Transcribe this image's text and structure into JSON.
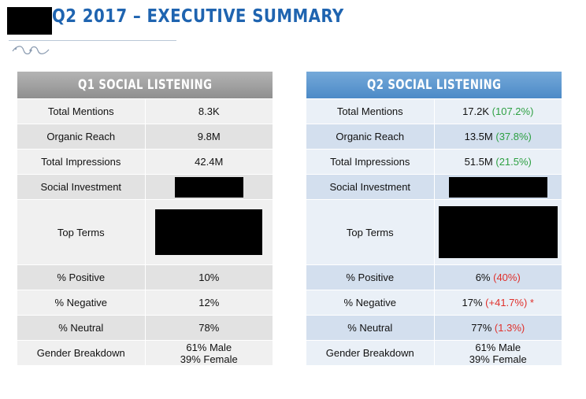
{
  "header": {
    "title": "Q2 2017 – EXECUTIVE SUMMARY"
  },
  "colors": {
    "title": "#1f64b0",
    "q1_header": "#9e9e9e",
    "q2_header": "#5b97d0",
    "positive_change": "#2ea043",
    "negative_change": "#e0302b"
  },
  "q1": {
    "heading": "Q1 SOCIAL LISTENING",
    "rows": [
      {
        "label": "Total Mentions",
        "value": "8.3K"
      },
      {
        "label": "Organic Reach",
        "value": "9.8M"
      },
      {
        "label": "Total Impressions",
        "value": "42.4M"
      },
      {
        "label": "Social Investment",
        "value": ""
      },
      {
        "label": "Top Terms",
        "value": ""
      },
      {
        "label": "% Positive",
        "value": "10%"
      },
      {
        "label": "% Negative",
        "value": "12%"
      },
      {
        "label": "% Neutral",
        "value": "78%"
      },
      {
        "label": "Gender Breakdown",
        "value_line1": "61% Male",
        "value_line2": "39% Female"
      }
    ]
  },
  "q2": {
    "heading": "Q2 SOCIAL LISTENING",
    "rows": [
      {
        "label": "Total Mentions",
        "value": "17.2K",
        "change": "(107.2%)"
      },
      {
        "label": "Organic Reach",
        "value": "13.5M",
        "change": "(37.8%)"
      },
      {
        "label": "Total Impressions",
        "value": "51.5M",
        "change": "(21.5%)"
      },
      {
        "label": "Social Investment",
        "value": ""
      },
      {
        "label": "Top Terms",
        "value": ""
      },
      {
        "label": "% Positive",
        "value": "6%",
        "change": "(40%)"
      },
      {
        "label": "% Negative",
        "value": "17%",
        "change": "(+41.7%) *"
      },
      {
        "label": "% Neutral",
        "value": "77%",
        "change": "(1.3%)"
      },
      {
        "label": "Gender Breakdown",
        "value_line1": "61% Male",
        "value_line2": "39% Female"
      }
    ]
  }
}
